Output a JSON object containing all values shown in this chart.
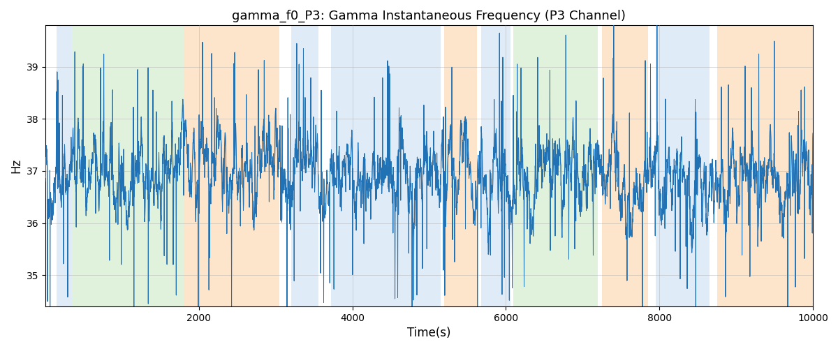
{
  "title": "gamma_f0_P3: Gamma Instantaneous Frequency (P3 Channel)",
  "xlabel": "Time(s)",
  "ylabel": "Hz",
  "xlim": [
    0,
    10000
  ],
  "ylim": [
    34.4,
    39.8
  ],
  "yticks": [
    35,
    36,
    37,
    38,
    39
  ],
  "xticks": [
    2000,
    4000,
    6000,
    8000,
    10000
  ],
  "line_color": "#2171b5",
  "line_width": 0.7,
  "bg_bands": [
    {
      "xmin": 148,
      "xmax": 350,
      "color": "#c6dbef",
      "alpha": 0.55
    },
    {
      "xmin": 350,
      "xmax": 1800,
      "color": "#c7e9c0",
      "alpha": 0.55
    },
    {
      "xmin": 1800,
      "xmax": 3050,
      "color": "#fdd0a2",
      "alpha": 0.55
    },
    {
      "xmin": 3200,
      "xmax": 3560,
      "color": "#c6dbef",
      "alpha": 0.55
    },
    {
      "xmin": 3720,
      "xmax": 5150,
      "color": "#c6dbef",
      "alpha": 0.55
    },
    {
      "xmin": 5200,
      "xmax": 5620,
      "color": "#fdd0a2",
      "alpha": 0.55
    },
    {
      "xmin": 5680,
      "xmax": 6060,
      "color": "#c6dbef",
      "alpha": 0.55
    },
    {
      "xmin": 6100,
      "xmax": 7200,
      "color": "#c7e9c0",
      "alpha": 0.55
    },
    {
      "xmin": 7250,
      "xmax": 7850,
      "color": "#fdd0a2",
      "alpha": 0.55
    },
    {
      "xmin": 7950,
      "xmax": 8650,
      "color": "#c6dbef",
      "alpha": 0.55
    },
    {
      "xmin": 8750,
      "xmax": 10000,
      "color": "#fdd0a2",
      "alpha": 0.55
    }
  ],
  "seed": 42,
  "n_points": 5000,
  "grid_color": "#aaaaaa",
  "grid_alpha": 0.6,
  "figsize": [
    12,
    5
  ],
  "dpi": 100
}
